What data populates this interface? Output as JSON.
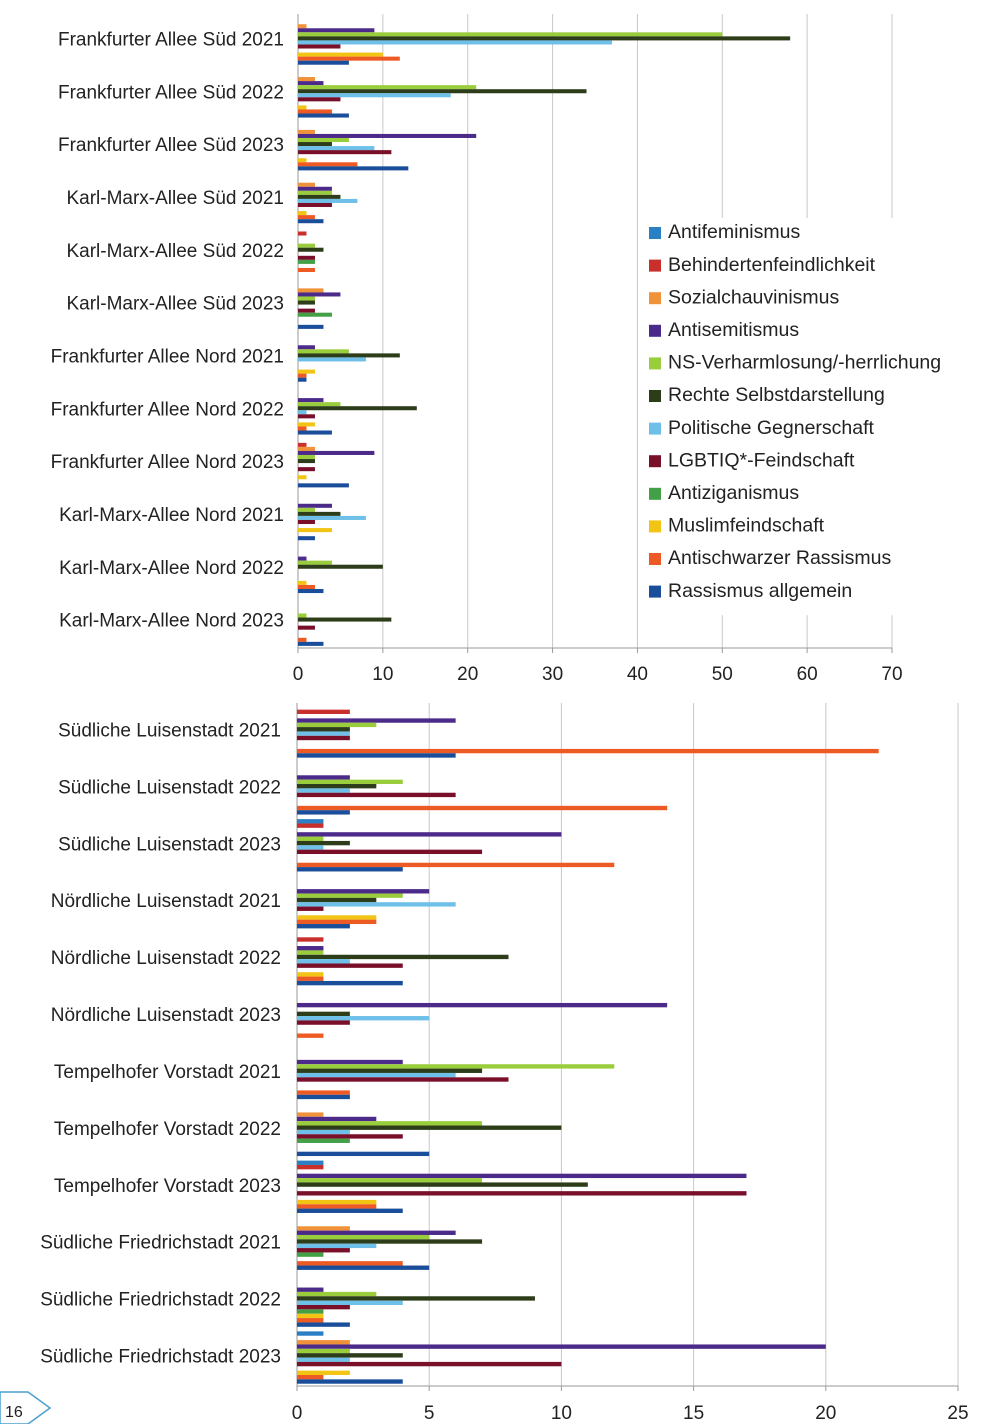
{
  "chart_data": [
    {
      "type": "bar",
      "orientation": "horizontal",
      "categories": [
        "Frankfurter Allee Süd 2021",
        "Frankfurter Allee Süd 2022",
        "Frankfurter Allee Süd 2023",
        "Karl-Marx-Allee Süd 2021",
        "Karl-Marx-Allee Süd 2022",
        "Karl-Marx-Allee Süd 2023",
        "Frankfurter Allee Nord 2021",
        "Frankfurter Allee Nord 2022",
        "Frankfurter Allee Nord 2023",
        "Karl-Marx-Allee Nord 2021",
        "Karl-Marx-Allee Nord 2022",
        "Karl-Marx-Allee Nord 2023"
      ],
      "series": [
        {
          "name": "Antifeminismus",
          "color": "#2b80c5",
          "values": [
            0,
            0,
            0,
            0,
            0,
            0,
            0,
            0,
            0,
            0,
            0,
            0
          ]
        },
        {
          "name": "Behindertenfeindlichkeit",
          "color": "#c9302c",
          "values": [
            0,
            0,
            0,
            0,
            1,
            0,
            0,
            0,
            1,
            0,
            0,
            0
          ]
        },
        {
          "name": "Sozialchauvinismus",
          "color": "#f0923a",
          "values": [
            1,
            2,
            2,
            2,
            0,
            3,
            0,
            0,
            2,
            0,
            0,
            0
          ]
        },
        {
          "name": "Antisemitismus",
          "color": "#4b2a8a",
          "values": [
            9,
            3,
            21,
            4,
            0,
            5,
            2,
            3,
            9,
            4,
            1,
            0
          ]
        },
        {
          "name": "NS-Verharmlosung/-herrlichung",
          "color": "#9acd3c",
          "values": [
            50,
            21,
            6,
            4,
            2,
            2,
            6,
            5,
            2,
            2,
            4,
            1
          ]
        },
        {
          "name": "Rechte Selbstdarstellung",
          "color": "#2d3d1a",
          "values": [
            58,
            34,
            4,
            5,
            3,
            2,
            12,
            14,
            2,
            5,
            10,
            11
          ]
        },
        {
          "name": "Politische Gegnerschaft",
          "color": "#6ec0e8",
          "values": [
            37,
            18,
            9,
            7,
            0,
            0,
            8,
            1,
            0,
            8,
            0,
            0
          ]
        },
        {
          "name": "LGBTIQ*-Feindschaft",
          "color": "#7a0f2a",
          "values": [
            5,
            5,
            11,
            4,
            2,
            2,
            0,
            2,
            2,
            2,
            0,
            2
          ]
        },
        {
          "name": "Antiziganismus",
          "color": "#43a047",
          "values": [
            0,
            0,
            0,
            0,
            2,
            4,
            0,
            0,
            0,
            0,
            0,
            0
          ]
        },
        {
          "name": "Muslimfeindschaft",
          "color": "#f2c414",
          "values": [
            10,
            1,
            1,
            1,
            0,
            0,
            2,
            2,
            1,
            4,
            1,
            0
          ]
        },
        {
          "name": "Antischwarzer Rassismus",
          "color": "#ee5a24",
          "values": [
            12,
            4,
            7,
            2,
            2,
            0,
            1,
            1,
            0,
            0,
            2,
            1
          ]
        },
        {
          "name": "Rassismus allgemein",
          "color": "#1a4e9a",
          "values": [
            6,
            6,
            13,
            3,
            0,
            3,
            1,
            4,
            6,
            2,
            3,
            3
          ]
        }
      ],
      "xlim": [
        0,
        70
      ],
      "xticks": [
        0,
        10,
        20,
        30,
        40,
        50,
        60,
        70
      ],
      "grid": true,
      "legend": "right"
    },
    {
      "type": "bar",
      "orientation": "horizontal",
      "categories": [
        "Südliche Luisenstadt 2021",
        "Südliche Luisenstadt 2022",
        "Südliche Luisenstadt 2023",
        "Nördliche Luisenstadt 2021",
        "Nördliche Luisenstadt 2022",
        "Nördliche Luisenstadt 2023",
        "Tempelhofer Vorstadt 2021",
        "Tempelhofer Vorstadt 2022",
        "Tempelhofer Vorstadt 2023",
        "Südliche Friedrichstadt 2021",
        "Südliche Friedrichstadt 2022",
        "Südliche Friedrichstadt 2023"
      ],
      "series": [
        {
          "color": "#2b80c5",
          "values": [
            0,
            0,
            1,
            0,
            0,
            0,
            0,
            0,
            1,
            0,
            0,
            1
          ]
        },
        {
          "color": "#c9302c",
          "values": [
            2,
            0,
            1,
            0,
            1,
            0,
            0,
            0,
            1,
            0,
            0,
            0
          ]
        },
        {
          "color": "#f0923a",
          "values": [
            0,
            0,
            0,
            0,
            0,
            0,
            0,
            1,
            0,
            2,
            0,
            2
          ]
        },
        {
          "color": "#4b2a8a",
          "values": [
            6,
            2,
            10,
            5,
            1,
            14,
            4,
            3,
            17,
            6,
            1,
            20
          ]
        },
        {
          "color": "#9acd3c",
          "values": [
            3,
            4,
            1,
            4,
            1,
            0,
            12,
            7,
            7,
            5,
            3,
            2
          ]
        },
        {
          "color": "#2d3d1a",
          "values": [
            2,
            3,
            2,
            3,
            8,
            2,
            7,
            10,
            11,
            7,
            9,
            4
          ]
        },
        {
          "color": "#6ec0e8",
          "values": [
            2,
            2,
            1,
            6,
            2,
            5,
            6,
            2,
            0,
            3,
            4,
            2
          ]
        },
        {
          "color": "#7a0f2a",
          "values": [
            2,
            6,
            7,
            1,
            4,
            2,
            8,
            4,
            17,
            2,
            2,
            10
          ]
        },
        {
          "color": "#43a047",
          "values": [
            0,
            0,
            0,
            0,
            0,
            0,
            0,
            2,
            0,
            1,
            1,
            0
          ]
        },
        {
          "color": "#f2c414",
          "values": [
            0,
            0,
            0,
            3,
            1,
            0,
            0,
            0,
            3,
            0,
            1,
            2
          ]
        },
        {
          "color": "#ee5a24",
          "values": [
            22,
            14,
            12,
            3,
            1,
            1,
            2,
            0,
            3,
            4,
            1,
            1
          ]
        },
        {
          "color": "#1a4e9a",
          "values": [
            6,
            2,
            4,
            2,
            4,
            0,
            2,
            5,
            4,
            5,
            2,
            4
          ]
        }
      ],
      "xlim": [
        0,
        25
      ],
      "xticks": [
        0,
        5,
        10,
        15,
        20,
        25
      ],
      "grid": true
    }
  ],
  "page_number": "16"
}
